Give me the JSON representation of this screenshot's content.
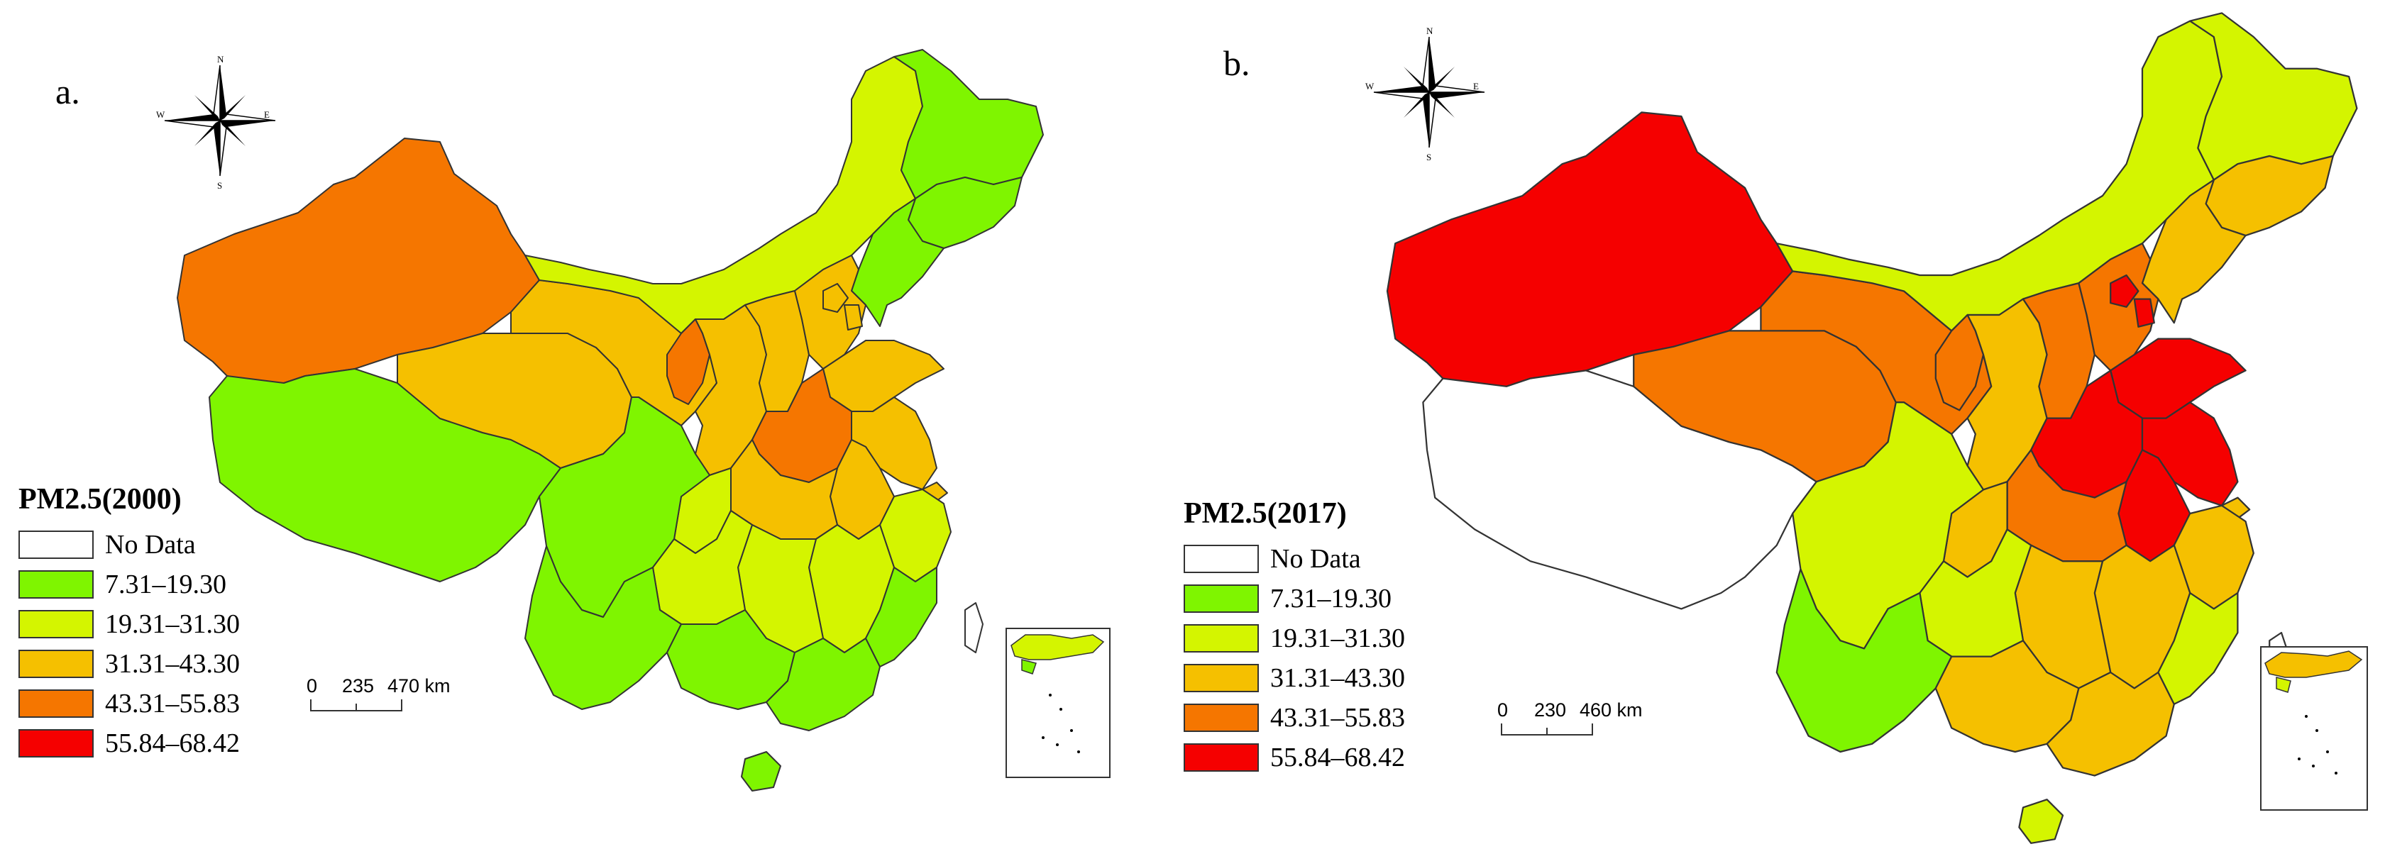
{
  "panels": [
    {
      "label": "a.",
      "legend_title": "PM2.5(2000)",
      "scale": {
        "zero": "0",
        "mid": "235",
        "end": "470 km"
      },
      "region_classes": {
        "xinjiang": 3,
        "tibet": 0,
        "qinghai": 2,
        "gansu": 2,
        "innermongolia": 1,
        "ningxia": 3,
        "shaanxi": 2,
        "shanxi": 2,
        "hebei": 2,
        "beijing": 2,
        "tianjin": 2,
        "shandong": 2,
        "henan": 3,
        "sichuan": 0,
        "chongqing": 1,
        "hubei": 2,
        "anhui": 2,
        "jiangsu": 2,
        "shanghai": 2,
        "zhejiang": 1,
        "jiangxi": 1,
        "hunan": 1,
        "guizhou": 1,
        "yunnan": 0,
        "guangxi": 0,
        "guangdong": 0,
        "fujian": 0,
        "hainan": 0,
        "taiwan": -1,
        "heilongjiang": 0,
        "jilin": 0,
        "liaoning": 0
      }
    },
    {
      "label": "b.",
      "legend_title": "PM2.5(2017)",
      "scale": {
        "zero": "0",
        "mid": "230",
        "end": "460 km"
      },
      "region_classes": {
        "xinjiang": 4,
        "tibet": -1,
        "qinghai": 3,
        "gansu": 3,
        "innermongolia": 1,
        "ningxia": 3,
        "shaanxi": 2,
        "shanxi": 3,
        "hebei": 3,
        "beijing": 4,
        "tianjin": 4,
        "shandong": 4,
        "henan": 4,
        "sichuan": 1,
        "chongqing": 2,
        "hubei": 3,
        "anhui": 4,
        "jiangsu": 4,
        "shanghai": 2,
        "zhejiang": 2,
        "jiangxi": 2,
        "hunan": 2,
        "guizhou": 1,
        "yunnan": 0,
        "guangxi": 2,
        "guangdong": 2,
        "fujian": 1,
        "hainan": 1,
        "taiwan": -1,
        "heilongjiang": 1,
        "jilin": 2,
        "liaoning": 2
      }
    }
  ],
  "legend": {
    "classes": [
      {
        "label": "No Data",
        "color": "#ffffff"
      },
      {
        "label": "7.31–19.30",
        "color": "#7ff500"
      },
      {
        "label": "19.31–31.30",
        "color": "#d4f500"
      },
      {
        "label": "31.31–43.30",
        "color": "#f5c000"
      },
      {
        "label": "43.31–55.83",
        "color": "#f57600"
      },
      {
        "label": "55.84–68.42",
        "color": "#f50000"
      }
    ]
  },
  "compass": {
    "n": "N",
    "s": "S",
    "e": "E",
    "w": "W"
  },
  "colors": {
    "outline": "#333333",
    "nodata": "#ffffff"
  }
}
